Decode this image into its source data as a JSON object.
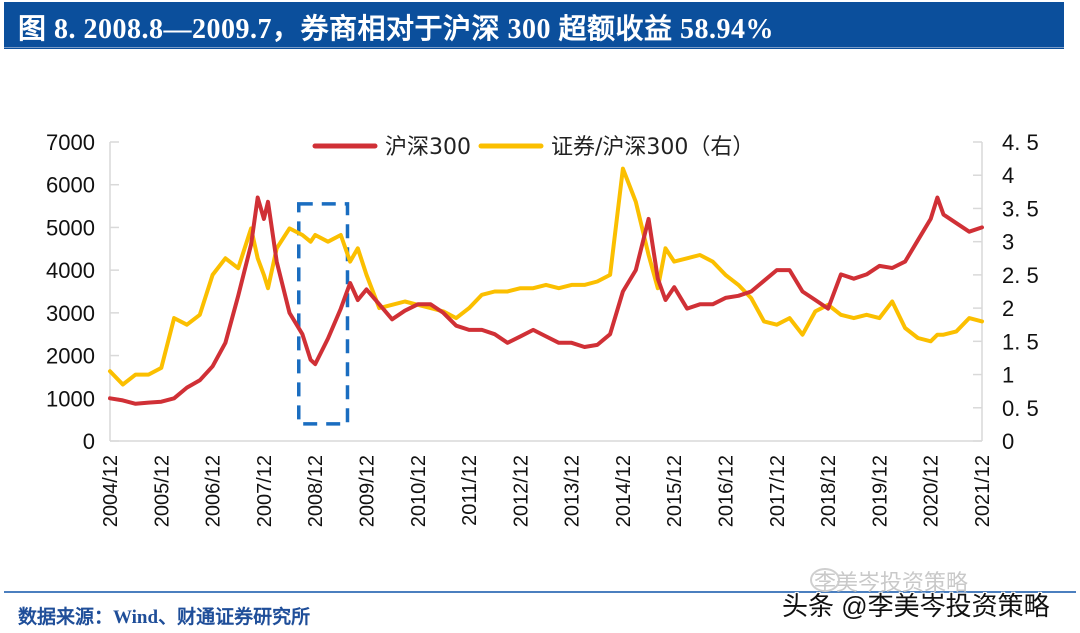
{
  "header": {
    "title": "图 8. 2008.8—2009.7，券商相对于沪深 300 超额收益 58.94%"
  },
  "footer": {
    "source": "数据来源：Wind、财通证券研究所",
    "watermark_faint": "李美岑投资策略",
    "watermark": "头条 @李美岑投资策略"
  },
  "colors": {
    "header_bg": "#0b4f9c",
    "csi300": "#d03036",
    "ratio": "#fbbf00",
    "highlight_box": "#1a6dc0",
    "source_text": "#1f4e99"
  },
  "chart_data": {
    "type": "line",
    "title": "",
    "legend": [
      "沪深300",
      "证券/沪深300（右）"
    ],
    "legend_position": "top-center",
    "x_ticks": [
      "2004/12",
      "2005/12",
      "2006/12",
      "2007/12",
      "2008/12",
      "2009/12",
      "2010/12",
      "2011/12",
      "2012/12",
      "2013/12",
      "2014/12",
      "2015/12",
      "2016/12",
      "2017/12",
      "2018/12",
      "2019/12",
      "2020/12",
      "2021/12"
    ],
    "y_left": {
      "min": 0,
      "max": 7000,
      "ticks": [
        "0",
        "1000",
        "2000",
        "3000",
        "4000",
        "5000",
        "6000",
        "7000"
      ]
    },
    "y_right": {
      "min": 0,
      "max": 4.5,
      "ticks": [
        "0",
        "0.5",
        "1",
        "1.5",
        "2",
        "2.5",
        "3",
        "3.5",
        "4",
        "4.5"
      ]
    },
    "highlight": {
      "label": "2008.8—2009.7",
      "x_start": 2008.6,
      "x_end": 2009.55,
      "y_left_low": 400,
      "y_left_high": 5550
    },
    "x": [
      2004.92,
      2005.17,
      2005.42,
      2005.67,
      2005.92,
      2006.17,
      2006.42,
      2006.67,
      2006.92,
      2007.17,
      2007.42,
      2007.67,
      2007.8,
      2007.92,
      2008.0,
      2008.17,
      2008.42,
      2008.67,
      2008.83,
      2008.92,
      2009.17,
      2009.42,
      2009.6,
      2009.75,
      2009.92,
      2010.17,
      2010.42,
      2010.67,
      2010.92,
      2011.17,
      2011.42,
      2011.67,
      2011.92,
      2012.17,
      2012.42,
      2012.67,
      2012.92,
      2013.17,
      2013.42,
      2013.67,
      2013.92,
      2014.17,
      2014.42,
      2014.67,
      2014.92,
      2015.17,
      2015.42,
      2015.6,
      2015.75,
      2015.92,
      2016.17,
      2016.42,
      2016.67,
      2016.92,
      2017.17,
      2017.42,
      2017.67,
      2017.92,
      2018.17,
      2018.42,
      2018.67,
      2018.92,
      2019.17,
      2019.42,
      2019.67,
      2019.92,
      2020.17,
      2020.42,
      2020.67,
      2020.92,
      2021.05,
      2021.17,
      2021.42,
      2021.67,
      2021.92
    ],
    "series": [
      {
        "name": "沪深300",
        "axis": "left",
        "values": [
          1000,
          950,
          870,
          900,
          920,
          1000,
          1250,
          1420,
          1750,
          2300,
          3400,
          4600,
          5700,
          5200,
          5600,
          4200,
          3000,
          2500,
          1900,
          1800,
          2400,
          3100,
          3700,
          3300,
          3550,
          3200,
          2850,
          3050,
          3200,
          3200,
          3000,
          2700,
          2600,
          2600,
          2500,
          2300,
          2450,
          2600,
          2450,
          2300,
          2300,
          2200,
          2250,
          2500,
          3500,
          4000,
          5200,
          3800,
          3300,
          3600,
          3100,
          3200,
          3200,
          3350,
          3400,
          3500,
          3750,
          4000,
          4000,
          3500,
          3300,
          3100,
          3900,
          3800,
          3900,
          4100,
          4050,
          4200,
          4700,
          5200,
          5700,
          5300,
          5100,
          4900,
          5000
        ]
      },
      {
        "name": "证券/沪深300（右）",
        "axis": "right",
        "values": [
          1.05,
          0.85,
          1.0,
          1.0,
          1.1,
          1.85,
          1.75,
          1.9,
          2.5,
          2.75,
          2.6,
          3.2,
          2.75,
          2.5,
          2.3,
          2.9,
          3.2,
          3.1,
          3.0,
          3.1,
          3.0,
          3.1,
          2.7,
          2.9,
          2.5,
          2.0,
          2.05,
          2.1,
          2.05,
          2.0,
          1.95,
          1.85,
          2.0,
          2.2,
          2.25,
          2.25,
          2.3,
          2.3,
          2.35,
          2.3,
          2.35,
          2.35,
          2.4,
          2.5,
          4.1,
          3.6,
          2.8,
          2.3,
          2.9,
          2.7,
          2.75,
          2.8,
          2.7,
          2.5,
          2.35,
          2.15,
          1.8,
          1.75,
          1.85,
          1.6,
          1.95,
          2.05,
          1.9,
          1.85,
          1.9,
          1.85,
          2.1,
          1.7,
          1.55,
          1.5,
          1.6,
          1.6,
          1.65,
          1.85,
          1.8
        ]
      }
    ]
  }
}
